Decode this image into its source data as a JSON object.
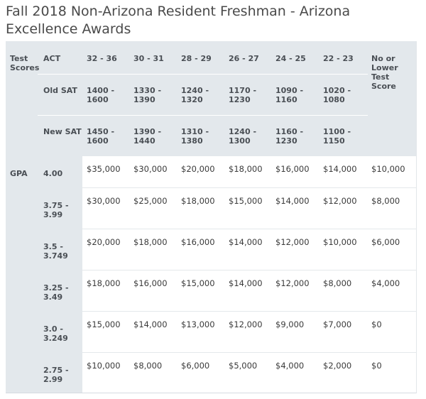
{
  "title": "Fall 2018 Non-Arizona Resident Freshman - Arizona Excellence Awards",
  "header": {
    "test_scores": "Test Scores",
    "gpa": "GPA",
    "rows": [
      {
        "label": "ACT",
        "values": [
          "32 - 36",
          "30 - 31",
          "28 - 29",
          "26 - 27",
          "24 - 25",
          "22 - 23"
        ]
      },
      {
        "label": "Old SAT",
        "values": [
          "1400 - 1600",
          "1330 - 1390",
          "1240 - 1320",
          "1170 - 1230",
          "1090 - 1160",
          "1020 - 1080"
        ]
      },
      {
        "label": "New SAT",
        "values": [
          "1450 - 1600",
          "1390 - 1440",
          "1310 - 1380",
          "1240 - 1300",
          "1160 - 1230",
          "1100 - 1150"
        ]
      }
    ],
    "no_score": "No or Lower Test Score"
  },
  "rows": [
    {
      "gpa": "4.00",
      "awards": [
        "$35,000",
        "$30,000",
        "$20,000",
        "$18,000",
        "$16,000",
        "$14,000",
        "$10,000"
      ]
    },
    {
      "gpa": "3.75 - 3.99",
      "awards": [
        "$30,000",
        "$25,000",
        "$18,000",
        "$15,000",
        "$14,000",
        "$12,000",
        "$8,000"
      ]
    },
    {
      "gpa": "3.5 - 3.749",
      "awards": [
        "$20,000",
        "$18,000",
        "$16,000",
        "$14,000",
        "$12,000",
        "$10,000",
        "$6,000"
      ]
    },
    {
      "gpa": "3.25 - 3.49",
      "awards": [
        "$18,000",
        "$16,000",
        "$15,000",
        "$14,000",
        "$12,000",
        "$8,000",
        "$4,000"
      ]
    },
    {
      "gpa": "3.0 - 3.249",
      "awards": [
        "$15,000",
        "$14,000",
        "$13,000",
        "$12,000",
        "$9,000",
        "$7,000",
        "$0"
      ]
    },
    {
      "gpa": "2.75 - 2.99",
      "awards": [
        "$10,000",
        "$8,000",
        "$6,000",
        "$5,000",
        "$4,000",
        "$2,000",
        "$0"
      ]
    }
  ]
}
